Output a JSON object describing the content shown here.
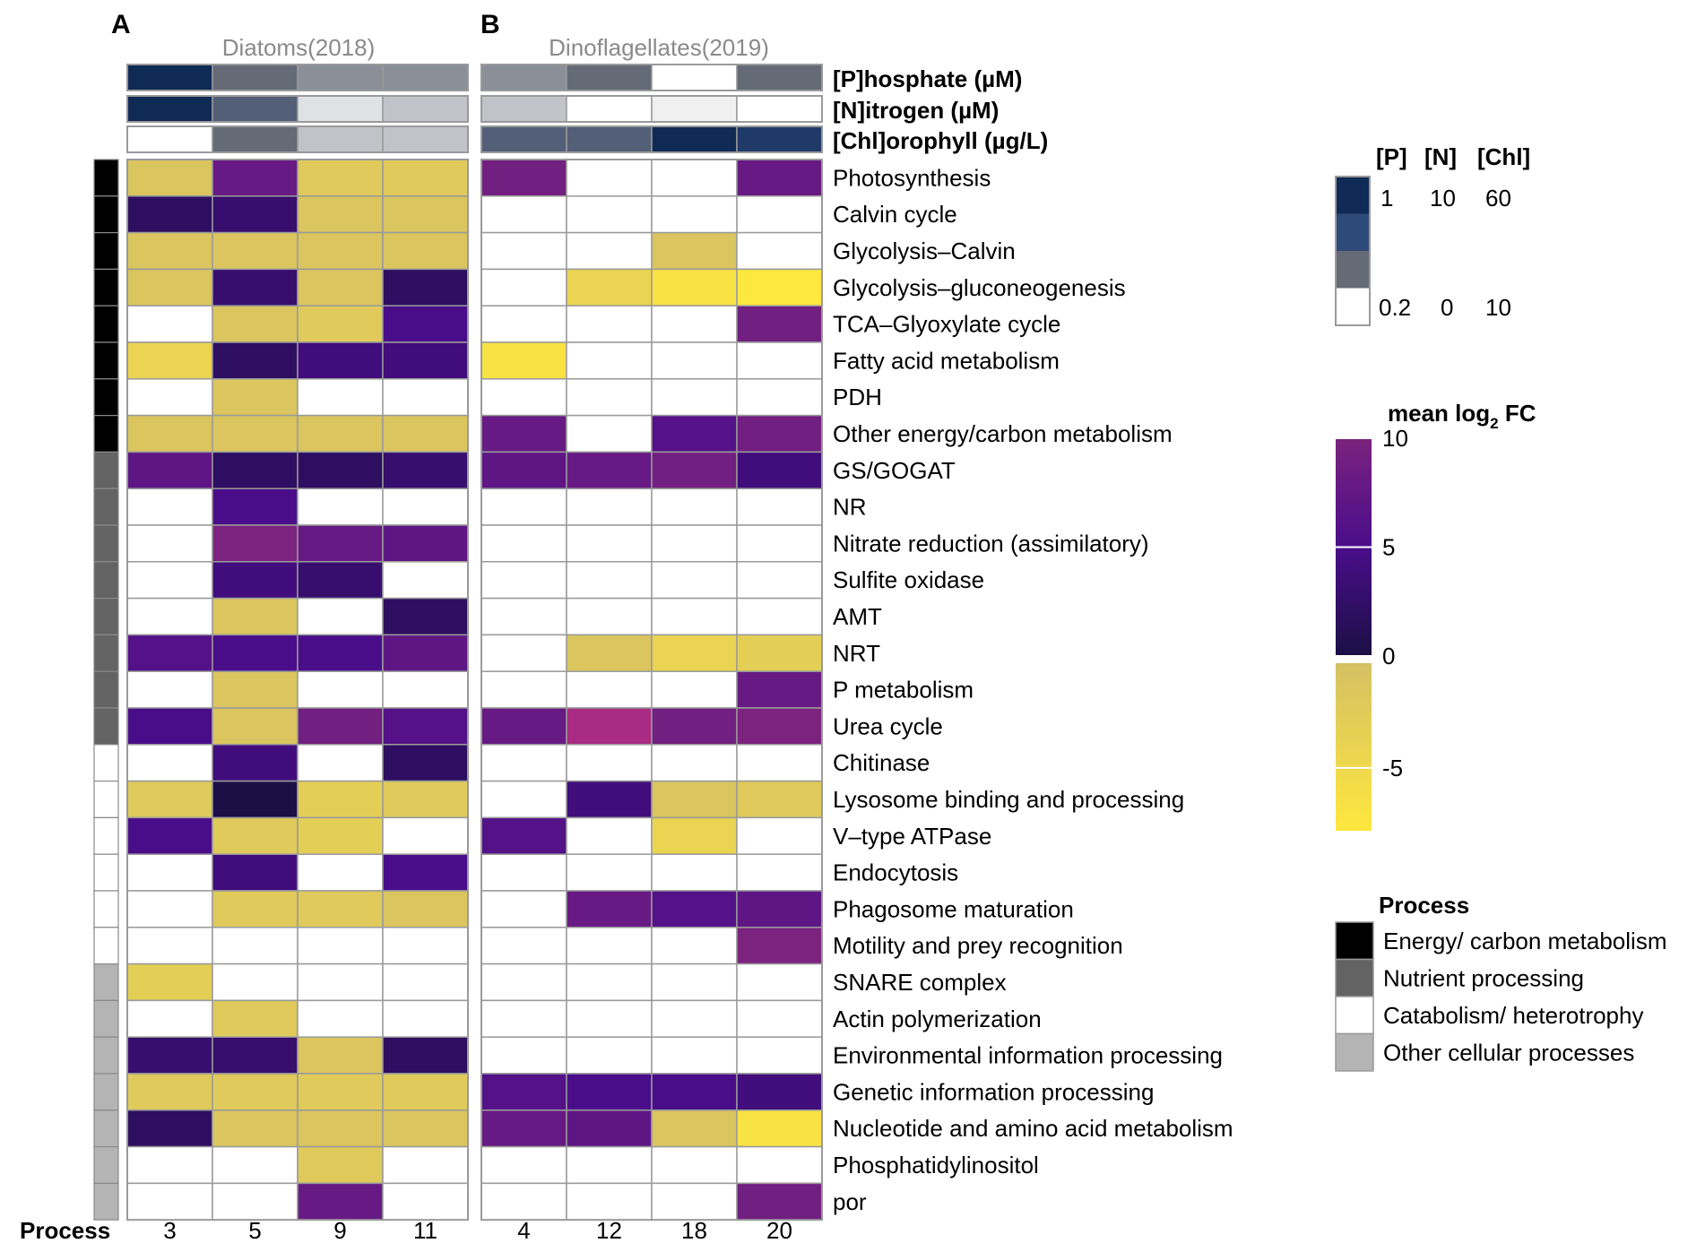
{
  "panels": [
    {
      "letter": "A",
      "title": "Diatoms(2018)",
      "processes": [
        "3",
        "5",
        "9",
        "11"
      ]
    },
    {
      "letter": "B",
      "title": "Dinoflagellates(2019)",
      "processes": [
        "4",
        "12",
        "18",
        "20"
      ]
    }
  ],
  "process_axis_label": "Process",
  "env_labels": {
    "phosphate": "[P]hosphate (µM)",
    "nitrogen": "[N]itrogen (µM)",
    "chlorophyll": "[Chl]orophyll (µg/L)"
  },
  "env_legend": {
    "headers": [
      "[P]",
      "[N]",
      "[Chl]"
    ],
    "high": [
      "1",
      "10",
      "60"
    ],
    "low": [
      "0.2",
      "0",
      "10"
    ],
    "swatches": [
      "#0f2a55",
      "#2e4a78",
      "#646a76",
      "#ffffff"
    ]
  },
  "fc_legend": {
    "title": "mean log",
    "title_sub": "2",
    "title_tail": " FC",
    "ticks": [
      {
        "v": 10,
        "label": "10"
      },
      {
        "v": 5,
        "label": "5"
      },
      {
        "v": 0,
        "label": "0"
      },
      {
        "v": -5,
        "label": "-5"
      }
    ],
    "max": 10,
    "min": -8
  },
  "process_legend": {
    "title": "Process",
    "items": [
      {
        "label": "Energy/ carbon metabolism",
        "color": "#000000"
      },
      {
        "label": "Nutrient processing",
        "color": "#636363"
      },
      {
        "label": "Catabolism/ heterotrophy",
        "color": "#ffffff"
      },
      {
        "label": "Other cellular processes",
        "color": "#b4b4b4"
      }
    ]
  },
  "chart_data": {
    "type": "heatmap",
    "value_label": "mean log2 FC",
    "columns": [
      "3",
      "5",
      "9",
      "11",
      "4",
      "12",
      "18",
      "20"
    ],
    "column_groups": [
      {
        "name": "Diatoms(2018)",
        "columns": [
          "3",
          "5",
          "9",
          "11"
        ]
      },
      {
        "name": "Dinoflagellates(2019)",
        "columns": [
          "4",
          "12",
          "18",
          "20"
        ]
      }
    ],
    "env": {
      "phosphate": [
        1,
        0.6,
        0.5,
        0.5,
        0.5,
        0.6,
        0.2,
        0.6
      ],
      "nitrogen": [
        10,
        6,
        1,
        2,
        2,
        0,
        0.5,
        0
      ],
      "chlorophyll": [
        10,
        35,
        20,
        20,
        40,
        40,
        60,
        55
      ]
    },
    "rows": [
      {
        "label": "Photosynthesis",
        "category": 0,
        "values": [
          -1,
          8,
          -2,
          -2,
          9,
          null,
          null,
          8
        ]
      },
      {
        "label": "Calvin cycle",
        "category": 0,
        "values": [
          2,
          3,
          -1,
          -1,
          null,
          null,
          null,
          null
        ]
      },
      {
        "label": "Glycolysis–Calvin",
        "category": 0,
        "values": [
          -1,
          -1,
          -1,
          -1,
          null,
          null,
          -1,
          null
        ]
      },
      {
        "label": "Glycolysis–gluconeogenesis",
        "category": 0,
        "values": [
          -1,
          3,
          -1,
          2,
          null,
          -4,
          -7,
          -8
        ]
      },
      {
        "label": "TCA–Glyoxylate cycle",
        "category": 0,
        "values": [
          null,
          -1,
          -2,
          5,
          null,
          null,
          null,
          9
        ]
      },
      {
        "label": "Fatty acid metabolism",
        "category": 0,
        "values": [
          -4,
          2,
          4,
          4,
          -7,
          null,
          null,
          null
        ]
      },
      {
        "label": "PDH",
        "category": 0,
        "values": [
          null,
          -1,
          null,
          null,
          null,
          null,
          null,
          null
        ]
      },
      {
        "label": "Other energy/carbon metabolism",
        "category": 0,
        "values": [
          -1,
          -1,
          -1,
          -1,
          8,
          null,
          6,
          9
        ]
      },
      {
        "label": "GS/GOGAT",
        "category": 1,
        "values": [
          7,
          2,
          2,
          3,
          7,
          8,
          9,
          4
        ]
      },
      {
        "label": "NR",
        "category": 1,
        "values": [
          null,
          5,
          null,
          null,
          null,
          null,
          null,
          null
        ]
      },
      {
        "label": "Nitrate reduction (assimilatory)",
        "category": 1,
        "values": [
          null,
          10,
          8,
          7,
          null,
          null,
          null,
          null
        ]
      },
      {
        "label": "Sulfite oxidase",
        "category": 1,
        "values": [
          null,
          4,
          3,
          null,
          null,
          null,
          null,
          null
        ]
      },
      {
        "label": "AMT",
        "category": 1,
        "values": [
          null,
          -1,
          null,
          2,
          null,
          null,
          null,
          null
        ]
      },
      {
        "label": "NRT",
        "category": 1,
        "values": [
          6,
          5,
          5,
          7,
          null,
          -1,
          -4,
          -3
        ]
      },
      {
        "label": "P metabolism",
        "category": 1,
        "values": [
          null,
          -1,
          null,
          null,
          null,
          null,
          null,
          8
        ]
      },
      {
        "label": "Urea cycle",
        "category": 1,
        "values": [
          5,
          -1,
          9,
          6,
          8,
          12,
          9,
          10
        ]
      },
      {
        "label": "Chitinase",
        "category": 2,
        "values": [
          null,
          4,
          null,
          2,
          null,
          null,
          null,
          null
        ]
      },
      {
        "label": "Lysosome binding and processing",
        "category": 2,
        "values": [
          -2,
          0,
          -3,
          -2,
          null,
          4,
          -1,
          -2
        ]
      },
      {
        "label": "V–type ATPase",
        "category": 2,
        "values": [
          5,
          -2,
          -3,
          null,
          6,
          null,
          -4,
          null
        ]
      },
      {
        "label": "Endocytosis",
        "category": 2,
        "values": [
          null,
          4,
          null,
          5,
          null,
          null,
          null,
          null
        ]
      },
      {
        "label": "Phagosome maturation",
        "category": 2,
        "values": [
          null,
          -2,
          -2,
          -1,
          null,
          8,
          6,
          7
        ]
      },
      {
        "label": "Motility and prey recognition",
        "category": 2,
        "values": [
          null,
          null,
          null,
          null,
          null,
          null,
          null,
          10
        ]
      },
      {
        "label": "SNARE complex",
        "category": 3,
        "values": [
          -3,
          null,
          null,
          null,
          null,
          null,
          null,
          null
        ]
      },
      {
        "label": "Actin polymerization",
        "category": 3,
        "values": [
          null,
          -2,
          null,
          null,
          null,
          null,
          null,
          null
        ]
      },
      {
        "label": "Environmental information processing",
        "category": 3,
        "values": [
          3,
          3,
          -1,
          2,
          null,
          null,
          null,
          null
        ]
      },
      {
        "label": "Genetic information processing",
        "category": 3,
        "values": [
          -2,
          -2,
          -2,
          -2,
          6,
          5,
          5,
          4
        ]
      },
      {
        "label": "Nucleotide and amino acid metabolism",
        "category": 3,
        "values": [
          2,
          -1,
          -1,
          -1,
          8,
          7,
          -1,
          -7
        ]
      },
      {
        "label": "Phosphatidylinositol",
        "category": 3,
        "values": [
          null,
          null,
          -2,
          null,
          null,
          null,
          null,
          null
        ]
      },
      {
        "label": "por",
        "category": 3,
        "values": [
          null,
          null,
          8,
          null,
          null,
          null,
          null,
          9
        ]
      }
    ]
  }
}
